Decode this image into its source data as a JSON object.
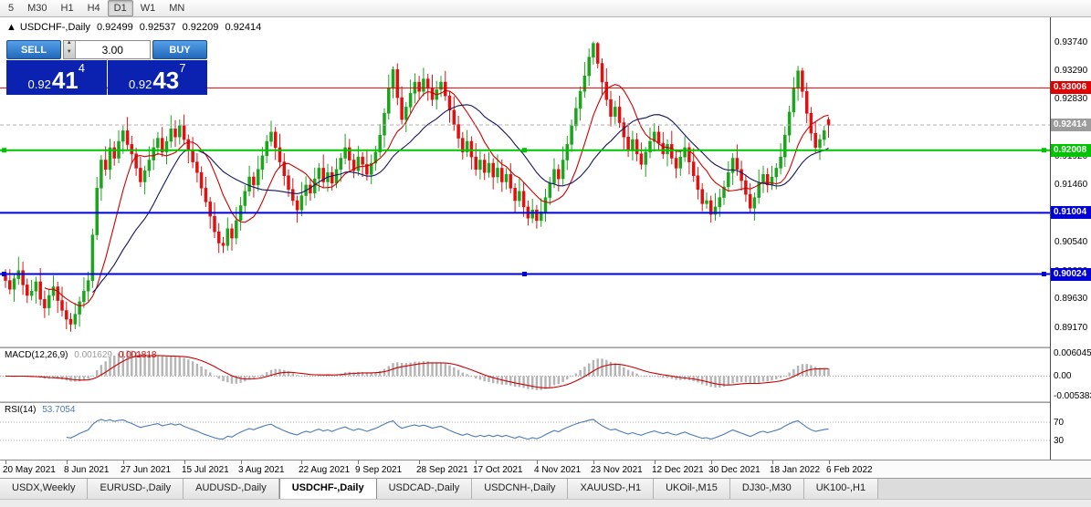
{
  "toolbar": {
    "timeframes": [
      "5",
      "M30",
      "H1",
      "H4",
      "D1",
      "W1",
      "MN"
    ],
    "active_timeframe": "D1"
  },
  "chart": {
    "header": {
      "marker": "▲",
      "title": "USDCHF-,Daily",
      "open": "0.92499",
      "high": "0.92537",
      "low": "0.92209",
      "close": "0.92414"
    },
    "trade_panel": {
      "sell_label": "SELL",
      "buy_label": "BUY",
      "volume": "3.00",
      "bid_small": "0.92",
      "bid_big": "41",
      "bid_sup": "4",
      "ask_small": "0.92",
      "ask_big": "43",
      "ask_sup": "7"
    }
  },
  "chart_data": {
    "type": "candlestick",
    "symbol": "USDCHF-",
    "timeframe": "Daily",
    "ylim": [
      0.8895,
      0.9405
    ],
    "colors": {
      "up": "#1ca51c",
      "down": "#e01010",
      "ma_fast": "#cc0000",
      "ma_slow": "#141460",
      "bid_line": "#b0b0b0"
    },
    "y_ticks": [
      "0.93740",
      "0.93290",
      "0.92830",
      "0.92380",
      "0.91920",
      "0.91460",
      "0.91000",
      "0.90540",
      "0.90080",
      "0.89630",
      "0.89170"
    ],
    "current_price": {
      "label": "0.92414",
      "value": 0.92414,
      "badge_color": "#9c9c9c"
    },
    "hlines": [
      {
        "value": 0.93006,
        "label": "0.93006",
        "color": "#e00000",
        "width": 1,
        "selected": false
      },
      {
        "value": 0.92008,
        "label": "0.92008",
        "color": "#00c400",
        "width": 2,
        "selected": true
      },
      {
        "value": 0.91004,
        "label": "0.91004",
        "color": "#0000d8",
        "width": 2,
        "selected": false
      },
      {
        "value": 0.90024,
        "label": "0.90024",
        "color": "#0000d8",
        "width": 2,
        "selected": true
      }
    ],
    "x_labels": [
      "20 May 2021",
      "8 Jun 2021",
      "27 Jun 2021",
      "15 Jul 2021",
      "3 Aug 2021",
      "22 Aug 2021",
      "9 Sep 2021",
      "28 Sep 2021",
      "17 Oct 2021",
      "4 Nov 2021",
      "23 Nov 2021",
      "12 Dec 2021",
      "30 Dec 2021",
      "18 Jan 2022",
      "6 Feb 2022"
    ],
    "ohlc": [
      [
        0.9,
        0.901,
        0.898,
        0.8992
      ],
      [
        0.8992,
        0.901,
        0.897,
        0.8978
      ],
      [
        0.8978,
        0.9003,
        0.8958,
        0.8995
      ],
      [
        0.8995,
        0.903,
        0.8985,
        0.9008
      ],
      [
        0.9008,
        0.9022,
        0.8969,
        0.8985
      ],
      [
        0.8985,
        0.8995,
        0.8956,
        0.8968
      ],
      [
        0.8968,
        0.8993,
        0.896,
        0.8975
      ],
      [
        0.8975,
        0.8998,
        0.8955,
        0.899
      ],
      [
        0.899,
        0.9012,
        0.8952,
        0.8962
      ],
      [
        0.8962,
        0.8976,
        0.8932,
        0.8948
      ],
      [
        0.8948,
        0.8978,
        0.8936,
        0.8968
      ],
      [
        0.8968,
        0.9,
        0.896,
        0.8982
      ],
      [
        0.8982,
        0.899,
        0.894,
        0.896
      ],
      [
        0.896,
        0.8982,
        0.8934,
        0.8944
      ],
      [
        0.8944,
        0.8958,
        0.8914,
        0.893
      ],
      [
        0.893,
        0.894,
        0.891,
        0.8922
      ],
      [
        0.8922,
        0.8956,
        0.8914,
        0.8938
      ],
      [
        0.8938,
        0.8966,
        0.8918,
        0.8958
      ],
      [
        0.8958,
        0.8997,
        0.8948,
        0.8975
      ],
      [
        0.8975,
        0.9006,
        0.8959,
        0.8992
      ],
      [
        0.8992,
        0.9075,
        0.898,
        0.9065
      ],
      [
        0.9065,
        0.9158,
        0.9057,
        0.914
      ],
      [
        0.914,
        0.9193,
        0.912,
        0.9185
      ],
      [
        0.9185,
        0.9207,
        0.916,
        0.917
      ],
      [
        0.917,
        0.9219,
        0.9154,
        0.9205
      ],
      [
        0.9205,
        0.9215,
        0.9176,
        0.9188
      ],
      [
        0.9188,
        0.9233,
        0.918,
        0.9215
      ],
      [
        0.9215,
        0.924,
        0.9195,
        0.9232
      ],
      [
        0.9232,
        0.9254,
        0.92,
        0.921
      ],
      [
        0.921,
        0.9224,
        0.9179,
        0.9195
      ],
      [
        0.9195,
        0.9205,
        0.916,
        0.9172
      ],
      [
        0.9172,
        0.919,
        0.9142,
        0.915
      ],
      [
        0.915,
        0.9176,
        0.913,
        0.9168
      ],
      [
        0.9168,
        0.9207,
        0.9158,
        0.9185
      ],
      [
        0.9185,
        0.9219,
        0.9169,
        0.9205
      ],
      [
        0.9205,
        0.923,
        0.9193,
        0.922
      ],
      [
        0.922,
        0.9238,
        0.919,
        0.9198
      ],
      [
        0.9198,
        0.9223,
        0.9178,
        0.9215
      ],
      [
        0.9215,
        0.9257,
        0.9205,
        0.9235
      ],
      [
        0.9235,
        0.9249,
        0.9206,
        0.9222
      ],
      [
        0.9222,
        0.925,
        0.921,
        0.924
      ],
      [
        0.924,
        0.9258,
        0.921,
        0.9218
      ],
      [
        0.9218,
        0.9226,
        0.918,
        0.92
      ],
      [
        0.92,
        0.9222,
        0.9172,
        0.9182
      ],
      [
        0.9182,
        0.9196,
        0.9149,
        0.9165
      ],
      [
        0.9165,
        0.9175,
        0.9128,
        0.914
      ],
      [
        0.914,
        0.9158,
        0.911,
        0.9118
      ],
      [
        0.9118,
        0.9126,
        0.9075,
        0.9095
      ],
      [
        0.9095,
        0.9117,
        0.906,
        0.907
      ],
      [
        0.907,
        0.9084,
        0.9036,
        0.9052
      ],
      [
        0.9052,
        0.9062,
        0.9036,
        0.9048
      ],
      [
        0.9048,
        0.9093,
        0.904,
        0.9075
      ],
      [
        0.9075,
        0.9083,
        0.904,
        0.906
      ],
      [
        0.906,
        0.911,
        0.905,
        0.9088
      ],
      [
        0.9088,
        0.9126,
        0.9072,
        0.9112
      ],
      [
        0.9112,
        0.9145,
        0.91,
        0.9135
      ],
      [
        0.9135,
        0.9176,
        0.9127,
        0.9158
      ],
      [
        0.9158,
        0.9166,
        0.9125,
        0.9145
      ],
      [
        0.9145,
        0.9192,
        0.9135,
        0.917
      ],
      [
        0.917,
        0.9206,
        0.9154,
        0.9192
      ],
      [
        0.9192,
        0.9225,
        0.918,
        0.9215
      ],
      [
        0.9215,
        0.9248,
        0.9207,
        0.923
      ],
      [
        0.923,
        0.9238,
        0.9185,
        0.9205
      ],
      [
        0.9205,
        0.9227,
        0.9172,
        0.9182
      ],
      [
        0.9182,
        0.9196,
        0.9144,
        0.916
      ],
      [
        0.916,
        0.917,
        0.9126,
        0.9138
      ],
      [
        0.9138,
        0.9156,
        0.9112,
        0.912
      ],
      [
        0.912,
        0.9128,
        0.9085,
        0.9105
      ],
      [
        0.9105,
        0.915,
        0.9095,
        0.9128
      ],
      [
        0.9128,
        0.9159,
        0.9112,
        0.9145
      ],
      [
        0.9145,
        0.9155,
        0.912,
        0.9132
      ],
      [
        0.9132,
        0.9173,
        0.9124,
        0.9155
      ],
      [
        0.9155,
        0.918,
        0.9135,
        0.9172
      ],
      [
        0.9172,
        0.9194,
        0.914,
        0.915
      ],
      [
        0.915,
        0.9179,
        0.9134,
        0.9165
      ],
      [
        0.9165,
        0.9175,
        0.9136,
        0.9148
      ],
      [
        0.9148,
        0.9188,
        0.914,
        0.917
      ],
      [
        0.917,
        0.9196,
        0.915,
        0.9188
      ],
      [
        0.9188,
        0.9227,
        0.9178,
        0.9205
      ],
      [
        0.9205,
        0.9219,
        0.9169,
        0.9185
      ],
      [
        0.9185,
        0.9195,
        0.9156,
        0.9168
      ],
      [
        0.9168,
        0.9208,
        0.916,
        0.919
      ],
      [
        0.919,
        0.9198,
        0.9158,
        0.9178
      ],
      [
        0.9178,
        0.92,
        0.9152,
        0.9162
      ],
      [
        0.9162,
        0.9194,
        0.9146,
        0.918
      ],
      [
        0.918,
        0.9208,
        0.9168,
        0.9198
      ],
      [
        0.9198,
        0.9243,
        0.919,
        0.9225
      ],
      [
        0.9225,
        0.9268,
        0.9205,
        0.926
      ],
      [
        0.926,
        0.9322,
        0.925,
        0.93
      ],
      [
        0.93,
        0.9335,
        0.9284,
        0.933
      ],
      [
        0.933,
        0.934,
        0.9273,
        0.9285
      ],
      [
        0.9285,
        0.9303,
        0.9242,
        0.925
      ],
      [
        0.925,
        0.9278,
        0.923,
        0.927
      ],
      [
        0.927,
        0.9314,
        0.926,
        0.9292
      ],
      [
        0.9292,
        0.9324,
        0.9276,
        0.931
      ],
      [
        0.931,
        0.932,
        0.9283,
        0.9295
      ],
      [
        0.9295,
        0.9333,
        0.9287,
        0.9315
      ],
      [
        0.9315,
        0.9323,
        0.928,
        0.93
      ],
      [
        0.93,
        0.9322,
        0.9272,
        0.9282
      ],
      [
        0.9282,
        0.9312,
        0.9266,
        0.9298
      ],
      [
        0.9298,
        0.932,
        0.9286,
        0.931
      ],
      [
        0.931,
        0.9328,
        0.928,
        0.9288
      ],
      [
        0.9288,
        0.9296,
        0.9245,
        0.9265
      ],
      [
        0.9265,
        0.9287,
        0.9232,
        0.9242
      ],
      [
        0.9242,
        0.9256,
        0.9204,
        0.922
      ],
      [
        0.922,
        0.923,
        0.9186,
        0.9198
      ],
      [
        0.9198,
        0.9233,
        0.919,
        0.9215
      ],
      [
        0.9215,
        0.9223,
        0.917,
        0.919
      ],
      [
        0.919,
        0.9212,
        0.916,
        0.917
      ],
      [
        0.917,
        0.9199,
        0.9154,
        0.9185
      ],
      [
        0.9185,
        0.9195,
        0.9153,
        0.9165
      ],
      [
        0.9165,
        0.9198,
        0.9157,
        0.918
      ],
      [
        0.918,
        0.9188,
        0.9138,
        0.9158
      ],
      [
        0.9158,
        0.9194,
        0.9148,
        0.9172
      ],
      [
        0.9172,
        0.9186,
        0.9134,
        0.915
      ],
      [
        0.915,
        0.9172,
        0.9138,
        0.9162
      ],
      [
        0.9162,
        0.918,
        0.9132,
        0.914
      ],
      [
        0.914,
        0.9148,
        0.91,
        0.912
      ],
      [
        0.912,
        0.9157,
        0.911,
        0.9135
      ],
      [
        0.9135,
        0.9149,
        0.9094,
        0.911
      ],
      [
        0.911,
        0.912,
        0.908,
        0.9092
      ],
      [
        0.9092,
        0.9123,
        0.9084,
        0.9105
      ],
      [
        0.9105,
        0.9113,
        0.9075,
        0.9088
      ],
      [
        0.9088,
        0.9124,
        0.9078,
        0.9102
      ],
      [
        0.9102,
        0.9139,
        0.9086,
        0.9125
      ],
      [
        0.9125,
        0.9158,
        0.9113,
        0.9148
      ],
      [
        0.9148,
        0.9188,
        0.914,
        0.917
      ],
      [
        0.917,
        0.9178,
        0.9135,
        0.9155
      ],
      [
        0.9155,
        0.9207,
        0.9145,
        0.9185
      ],
      [
        0.9185,
        0.9224,
        0.9169,
        0.921
      ],
      [
        0.921,
        0.925,
        0.9198,
        0.924
      ],
      [
        0.924,
        0.9286,
        0.9232,
        0.9268
      ],
      [
        0.9268,
        0.9303,
        0.9248,
        0.9295
      ],
      [
        0.9295,
        0.9342,
        0.9285,
        0.932
      ],
      [
        0.932,
        0.9364,
        0.9304,
        0.935
      ],
      [
        0.935,
        0.9375,
        0.9338,
        0.9372
      ],
      [
        0.9372,
        0.9374,
        0.9332,
        0.934
      ],
      [
        0.934,
        0.9348,
        0.929,
        0.931
      ],
      [
        0.931,
        0.9332,
        0.9272,
        0.9282
      ],
      [
        0.9282,
        0.9296,
        0.9239,
        0.9255
      ],
      [
        0.9255,
        0.928,
        0.9243,
        0.927
      ],
      [
        0.927,
        0.9288,
        0.9237,
        0.9245
      ],
      [
        0.9245,
        0.9253,
        0.9202,
        0.9222
      ],
      [
        0.9222,
        0.9244,
        0.919,
        0.92
      ],
      [
        0.92,
        0.9232,
        0.9184,
        0.9218
      ],
      [
        0.9218,
        0.9228,
        0.9183,
        0.9195
      ],
      [
        0.9195,
        0.9213,
        0.917,
        0.9178
      ],
      [
        0.9178,
        0.9206,
        0.9158,
        0.9198
      ],
      [
        0.9198,
        0.9237,
        0.9188,
        0.9215
      ],
      [
        0.9215,
        0.9244,
        0.9199,
        0.923
      ],
      [
        0.923,
        0.924,
        0.92,
        0.9212
      ],
      [
        0.9212,
        0.923,
        0.9187,
        0.9195
      ],
      [
        0.9195,
        0.9218,
        0.9175,
        0.921
      ],
      [
        0.921,
        0.9232,
        0.9178,
        0.9188
      ],
      [
        0.9188,
        0.9202,
        0.9156,
        0.9172
      ],
      [
        0.9172,
        0.92,
        0.916,
        0.919
      ],
      [
        0.919,
        0.9223,
        0.9182,
        0.9205
      ],
      [
        0.9205,
        0.9213,
        0.9162,
        0.9182
      ],
      [
        0.9182,
        0.9204,
        0.915,
        0.916
      ],
      [
        0.916,
        0.9174,
        0.9122,
        0.9138
      ],
      [
        0.9138,
        0.9148,
        0.9103,
        0.9115
      ],
      [
        0.9115,
        0.9133,
        0.9107,
        0.912
      ],
      [
        0.912,
        0.9128,
        0.9085,
        0.9098
      ],
      [
        0.9098,
        0.9132,
        0.9088,
        0.911
      ],
      [
        0.911,
        0.9139,
        0.9094,
        0.9125
      ],
      [
        0.9125,
        0.9152,
        0.9113,
        0.9142
      ],
      [
        0.9142,
        0.9183,
        0.9134,
        0.9165
      ],
      [
        0.9165,
        0.9196,
        0.9145,
        0.9188
      ],
      [
        0.9188,
        0.921,
        0.916,
        0.917
      ],
      [
        0.917,
        0.9184,
        0.9136,
        0.9152
      ],
      [
        0.9152,
        0.9162,
        0.9118,
        0.913
      ],
      [
        0.913,
        0.9148,
        0.91,
        0.9108
      ],
      [
        0.9108,
        0.9133,
        0.9088,
        0.9125
      ],
      [
        0.9125,
        0.917,
        0.9115,
        0.9148
      ],
      [
        0.9148,
        0.9176,
        0.9132,
        0.9162
      ],
      [
        0.9162,
        0.9172,
        0.9133,
        0.9145
      ],
      [
        0.9145,
        0.9176,
        0.9137,
        0.9158
      ],
      [
        0.9158,
        0.918,
        0.9138,
        0.9172
      ],
      [
        0.9172,
        0.9212,
        0.9162,
        0.919
      ],
      [
        0.919,
        0.9239,
        0.9174,
        0.9225
      ],
      [
        0.9225,
        0.9272,
        0.9213,
        0.9262
      ],
      [
        0.9262,
        0.9318,
        0.9254,
        0.93
      ],
      [
        0.93,
        0.9336,
        0.928,
        0.9328
      ],
      [
        0.9328,
        0.9333,
        0.9285,
        0.9295
      ],
      [
        0.9295,
        0.9309,
        0.9244,
        0.926
      ],
      [
        0.926,
        0.927,
        0.9216,
        0.9228
      ],
      [
        0.9228,
        0.9246,
        0.9197,
        0.9205
      ],
      [
        0.9205,
        0.9226,
        0.9185,
        0.9218
      ],
      [
        0.9218,
        0.924,
        0.9208,
        0.9232
      ],
      [
        0.925,
        0.9254,
        0.9221,
        0.9241
      ]
    ],
    "indicators": [
      {
        "name": "MACD",
        "params": "(12,26,9)",
        "label": "MACD(12,26,9)",
        "hist_value": "0.001629",
        "signal_value": "0.001818",
        "axis_labels": [
          "0.006045",
          "0.00",
          "-0.005383"
        ],
        "axis_values": [
          0.006045,
          0.0,
          -0.005383
        ],
        "hist_color": "#b4b4b4",
        "signal_color": "#cc0000"
      },
      {
        "name": "RSI",
        "params": "(14)",
        "label": "RSI(14)",
        "value": "53.7054",
        "levels": [
          70,
          30
        ],
        "level_labels": [
          "70",
          "30"
        ],
        "line_color": "#4a7ab5"
      }
    ]
  },
  "tabs": {
    "items": [
      "USDX,Weekly",
      "EURUSD-,Daily",
      "AUDUSD-,Daily",
      "USDCHF-,Daily",
      "USDCAD-,Daily",
      "USDCNH-,Daily",
      "XAUUSD-,H1",
      "UKOil-,M15",
      "DJ30-,M30",
      "UK100-,H1"
    ],
    "active": "USDCHF-,Daily"
  }
}
